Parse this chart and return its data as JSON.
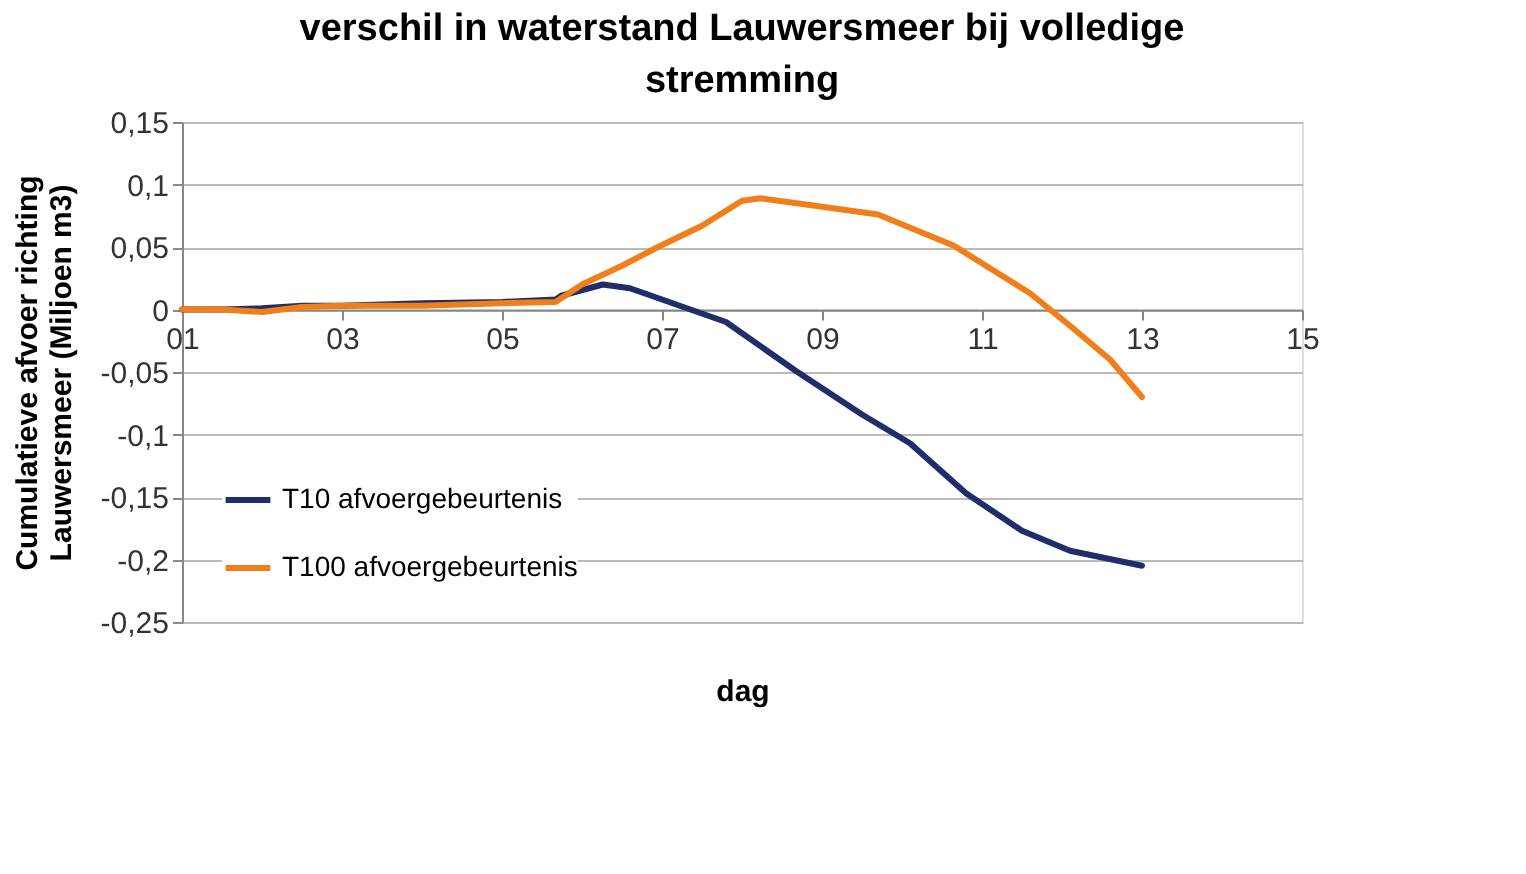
{
  "chart_data": {
    "type": "line",
    "title": "verschil in waterstand Lauwersmeer bij volledige stremming",
    "xlabel": "dag",
    "ylabel": "Cumulatieve afvoer richting Lauwersmeer (Miljoen m3)",
    "xlim": [
      1,
      15
    ],
    "xticks": [
      {
        "value": 1,
        "label": "01"
      },
      {
        "value": 3,
        "label": "03"
      },
      {
        "value": 5,
        "label": "05"
      },
      {
        "value": 7,
        "label": "07"
      },
      {
        "value": 9,
        "label": "09"
      },
      11,
      13,
      15
    ],
    "ylim": [
      -0.25,
      0.15
    ],
    "yticks": [
      {
        "value": -0.25,
        "label": "-0,25"
      },
      {
        "value": -0.2,
        "label": "-0,2"
      },
      {
        "value": -0.15,
        "label": "-0,15"
      },
      {
        "value": -0.1,
        "label": "-0,1"
      },
      {
        "value": -0.05,
        "label": "-0,05"
      },
      {
        "value": 0,
        "label": "0"
      },
      {
        "value": 0.05,
        "label": "0,05"
      },
      {
        "value": 0.1,
        "label": "0,1"
      },
      {
        "value": 0.15,
        "label": "0,15"
      }
    ],
    "grid": "y",
    "legend": "bottom left",
    "marker": "none",
    "line_style": "solid",
    "series": [
      {
        "name": "T10 afvoergebeurtenis",
        "color": "#1f2d6b",
        "x": [
          1,
          1.5,
          2,
          2.5,
          3,
          4,
          5,
          5.67,
          5.74,
          6.26,
          6.6,
          7,
          7.8,
          8.67,
          9.5,
          10.1,
          10.8,
          11.5,
          12.1,
          13
        ],
        "values": [
          0,
          0,
          0.001,
          0.003,
          0.003,
          0.005,
          0.006,
          0.008,
          0.011,
          0.02,
          0.017,
          0.008,
          -0.01,
          -0.049,
          -0.084,
          -0.107,
          -0.147,
          -0.177,
          -0.193,
          -0.205
        ]
      },
      {
        "name": "T100 afvoergebeurtenis",
        "color": "#f07f19",
        "x": [
          1,
          1.5,
          2,
          2.5,
          3,
          4,
          5,
          5.67,
          6,
          6.5,
          6.95,
          7.5,
          8,
          8.23,
          8.8,
          9.7,
          10.65,
          11.6,
          12.1,
          12.6,
          13
        ],
        "values": [
          0,
          0,
          -0.002,
          0.002,
          0.003,
          0.003,
          0.005,
          0.006,
          0.02,
          0.035,
          0.05,
          0.067,
          0.087,
          0.089,
          0.084,
          0.076,
          0.051,
          0.013,
          -0.013,
          -0.04,
          -0.07
        ]
      }
    ]
  }
}
